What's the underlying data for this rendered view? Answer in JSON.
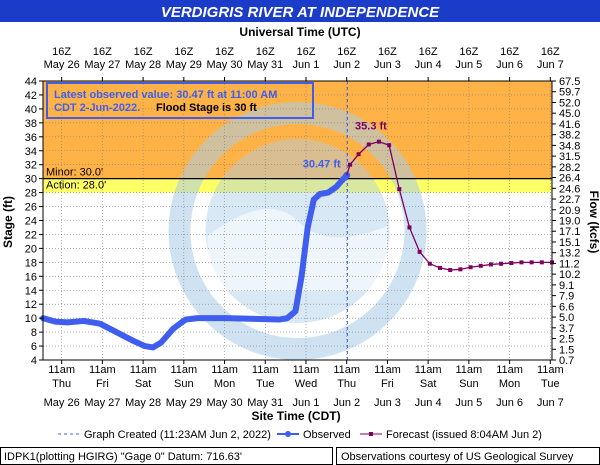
{
  "title": "VERDIGRIS RIVER AT INDEPENDENCE",
  "top_axis_title": "Universal Time (UTC)",
  "bottom_axis_title": "Site Time (CDT)",
  "left_axis_title": "Stage (ft)",
  "right_axis_title": "Flow (kcfs)",
  "colors": {
    "title_bg": "#1a3cc8",
    "title_text": "#ffffff",
    "above_flood": "#ffb347",
    "action_band": "#ffff66",
    "plot_bg": "#ffffff",
    "observed": "#3f5ef0",
    "forecast": "#800060",
    "grid": "#808080",
    "logo": "#a8cbe8"
  },
  "info_box": {
    "line1": "Latest observed value: 30.47 ft at 11:00 AM",
    "line2": "CDT 2-Jun-2022.",
    "line3": "Flood Stage is 30 ft"
  },
  "thresholds": {
    "minor_label": "Minor: 30.0'",
    "action_label": "Action: 28.0'"
  },
  "annotations": {
    "observed_value_label": "30.47 ft",
    "forecast_peak_label": "35.3 ft"
  },
  "legend": {
    "graph_created": "Graph Created (11:23AM Jun 2, 2022)",
    "observed": "Observed",
    "forecast": "Forecast (issued 8:04AM Jun 2)"
  },
  "footer": {
    "left": "IDPK1(plotting HGIRG) \"Gage 0\" Datum: 716.63'",
    "right": "Observations courtesy of US Geological Survey"
  },
  "chart_data": {
    "type": "line",
    "x_unit": "days since May 26 00:00 CDT",
    "xlim": [
      0,
      12.5
    ],
    "ylim": [
      4,
      44
    ],
    "y_ticks": [
      4,
      6,
      8,
      10,
      12,
      14,
      16,
      18,
      20,
      22,
      24,
      26,
      28,
      30,
      32,
      34,
      36,
      38,
      40,
      42,
      44
    ],
    "flow_ticks": [
      "0.7",
      "1.5",
      "2.5",
      "3.7",
      "5.0",
      "6.6",
      "7.9",
      "9.1",
      "10.2",
      "11.2",
      "13.2",
      "15.1",
      "17.1",
      "19.0",
      "20.9",
      "22.7",
      "24.6",
      "26.4",
      "28.2",
      "31.5",
      "34.8",
      "38.2",
      "41.6",
      "45.0",
      "52.0",
      "59.7",
      "67.5"
    ],
    "utc_ticks": [
      {
        "top": "16Z",
        "bottom": "May 26"
      },
      {
        "top": "16Z",
        "bottom": "May 27"
      },
      {
        "top": "16Z",
        "bottom": "May 28"
      },
      {
        "top": "16Z",
        "bottom": "May 29"
      },
      {
        "top": "16Z",
        "bottom": "May 30"
      },
      {
        "top": "16Z",
        "bottom": "May 31"
      },
      {
        "top": "16Z",
        "bottom": "Jun 1"
      },
      {
        "top": "16Z",
        "bottom": "Jun 2"
      },
      {
        "top": "16Z",
        "bottom": "Jun 3"
      },
      {
        "top": "16Z",
        "bottom": "Jun 4"
      },
      {
        "top": "16Z",
        "bottom": "Jun 5"
      },
      {
        "top": "16Z",
        "bottom": "Jun 6"
      },
      {
        "top": "16Z",
        "bottom": "Jun 7"
      }
    ],
    "cdt_ticks": [
      {
        "time": "11am",
        "day": "Thu",
        "date": "May 26"
      },
      {
        "time": "11am",
        "day": "Fri",
        "date": "May 27"
      },
      {
        "time": "11am",
        "day": "Sat",
        "date": "May 28"
      },
      {
        "time": "11am",
        "day": "Sun",
        "date": "May 29"
      },
      {
        "time": "11am",
        "day": "Mon",
        "date": "May 30"
      },
      {
        "time": "11am",
        "day": "Tue",
        "date": "May 31"
      },
      {
        "time": "11am",
        "day": "Wed",
        "date": "Jun 1"
      },
      {
        "time": "11am",
        "day": "Thu",
        "date": "Jun 2"
      },
      {
        "time": "11am",
        "day": "Fri",
        "date": "Jun 3"
      },
      {
        "time": "11am",
        "day": "Sat",
        "date": "Jun 4"
      },
      {
        "time": "11am",
        "day": "Sun",
        "date": "Jun 5"
      },
      {
        "time": "11am",
        "day": "Mon",
        "date": "Jun 6"
      },
      {
        "time": "11am",
        "day": "Tue",
        "date": "Jun 7"
      }
    ],
    "flood_stage": 30,
    "action_stage": 28,
    "graph_created_x": 7.475,
    "observed": {
      "name": "Observed",
      "points": [
        [
          0.0,
          10.0
        ],
        [
          0.3,
          9.5
        ],
        [
          0.6,
          9.4
        ],
        [
          1.0,
          9.6
        ],
        [
          1.4,
          9.2
        ],
        [
          1.8,
          8.0
        ],
        [
          2.2,
          6.8
        ],
        [
          2.5,
          6.0
        ],
        [
          2.7,
          5.8
        ],
        [
          2.9,
          6.5
        ],
        [
          3.2,
          8.5
        ],
        [
          3.5,
          9.8
        ],
        [
          3.8,
          10.0
        ],
        [
          4.5,
          10.0
        ],
        [
          5.2,
          9.9
        ],
        [
          5.8,
          9.8
        ],
        [
          6.0,
          10.0
        ],
        [
          6.2,
          11.0
        ],
        [
          6.35,
          16.0
        ],
        [
          6.5,
          23.0
        ],
        [
          6.65,
          27.0
        ],
        [
          6.8,
          27.8
        ],
        [
          7.0,
          28.0
        ],
        [
          7.2,
          28.8
        ],
        [
          7.35,
          29.8
        ],
        [
          7.458,
          30.47
        ]
      ]
    },
    "forecast": {
      "name": "Forecast",
      "points": [
        [
          7.458,
          30.47
        ],
        [
          7.54,
          32.0
        ],
        [
          7.75,
          33.5
        ],
        [
          8.0,
          34.9
        ],
        [
          8.25,
          35.3
        ],
        [
          8.5,
          34.8
        ],
        [
          8.75,
          28.5
        ],
        [
          9.0,
          23.0
        ],
        [
          9.25,
          19.5
        ],
        [
          9.5,
          17.8
        ],
        [
          9.75,
          17.2
        ],
        [
          10.0,
          16.9
        ],
        [
          10.25,
          17.0
        ],
        [
          10.5,
          17.3
        ],
        [
          10.75,
          17.5
        ],
        [
          11.0,
          17.7
        ],
        [
          11.25,
          17.8
        ],
        [
          11.5,
          17.9
        ],
        [
          11.75,
          18.0
        ],
        [
          12.0,
          18.0
        ],
        [
          12.25,
          18.0
        ],
        [
          12.5,
          18.0
        ]
      ]
    }
  }
}
